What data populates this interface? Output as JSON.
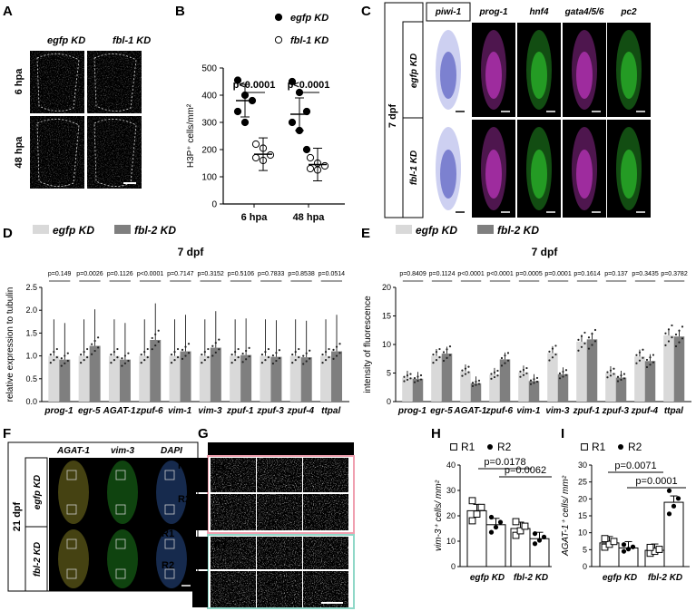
{
  "panel_letters": [
    "A",
    "B",
    "C",
    "D",
    "E",
    "F",
    "G",
    "H",
    "I"
  ],
  "A": {
    "cols": [
      "egfp KD",
      "fbl-1 KD"
    ],
    "rows": [
      "6 hpa",
      "48 hpa"
    ]
  },
  "C": {
    "timepoint": "7 dpf",
    "rows": [
      "egfp KD",
      "fbl-1 KD"
    ],
    "stains": [
      "piwi-1",
      "prog-1",
      "hnf4",
      "gata4/5/6",
      "pc2"
    ],
    "stain_colors": [
      "#3a3fb5",
      "#e040e0",
      "#33dd33",
      "#e040e0",
      "#33dd33"
    ]
  },
  "F": {
    "timepoint": "21 dpf",
    "rows": [
      "egfp KD",
      "fbl-2 KD"
    ],
    "channels": [
      "AGAT-1",
      "vim-3",
      "DAPI"
    ],
    "channel_colors": [
      "#e6dc3a",
      "#33dd33",
      "#4a8cff"
    ],
    "regions": [
      "R1",
      "R2"
    ]
  },
  "G": {
    "channels": [
      "AGAT-1",
      "vim-3",
      "DAPI"
    ],
    "region_labels": [
      "R1",
      "R2"
    ],
    "rows": [
      "egfp KD",
      "fbl-2 KD",
      "egfp KD",
      "fbl-2 KD"
    ]
  },
  "colors": {
    "egfp_bar": "#d9d9d9",
    "fbl_bar": "#7f7f7f",
    "R1_box": "#f0a0b0",
    "R2_box": "#90d8c8"
  },
  "chart_data": [
    {
      "panel": "B",
      "type": "scatter",
      "ylabel": "H3P⁺ cells/mm²",
      "ylim": [
        0,
        500
      ],
      "yticks": [
        0,
        100,
        200,
        300,
        400,
        500
      ],
      "categories": [
        "6 hpa",
        "48 hpa"
      ],
      "series": [
        {
          "name": "egfp KD",
          "mean": [
            380,
            330
          ],
          "values": [
            [
              455,
              400,
              380,
              340,
              300
            ],
            [
              450,
              410,
              340,
              300,
              270,
              200
            ]
          ]
        },
        {
          "name": "fbl-1 KD",
          "mean": [
            183,
            145
          ],
          "values": [
            [
              220,
              205,
              180,
              170,
              160
            ],
            [
              170,
              150,
              140,
              130,
              125
            ]
          ]
        }
      ],
      "annotations": [
        "p<0.0001",
        "p<0.0001"
      ]
    },
    {
      "panel": "D",
      "type": "bar",
      "title": "7 dpf",
      "ylabel": "relative expression to tubulin",
      "ylim": [
        0,
        2.5
      ],
      "yticks": [
        "0.0",
        "0.5",
        "1.0",
        "1.5",
        "2.0",
        "2.5"
      ],
      "categories": [
        "prog-1",
        "egr-5",
        "AGAT-1",
        "zpuf-6",
        "vim-1",
        "vim-3",
        "zpuf-1",
        "zpuf-3",
        "zpuf-4",
        "ttpal"
      ],
      "series": [
        {
          "name": "egfp KD",
          "values": [
            1.0,
            1.0,
            1.0,
            1.0,
            1.0,
            1.0,
            1.0,
            1.0,
            1.0,
            1.0
          ]
        },
        {
          "name": "fbl-2 KD",
          "values": [
            0.92,
            1.22,
            0.92,
            1.35,
            1.1,
            1.18,
            1.02,
            0.98,
            0.97,
            1.1
          ]
        }
      ],
      "p_values": [
        "p=0.149",
        "p=0.0026",
        "p=0.1126",
        "p<0.0001",
        "p=0.7147",
        "p=0.3152",
        "p=0.5106",
        "p=0.7833",
        "p=0.8538",
        "p=0.0514"
      ]
    },
    {
      "panel": "E",
      "type": "bar",
      "title": "7 dpf",
      "ylabel": "intensity of fluorescence",
      "ylim": [
        0,
        20
      ],
      "yticks": [
        0,
        5,
        10,
        15,
        20
      ],
      "categories": [
        "prog-1",
        "egr-5",
        "AGAT-1",
        "zpuf-6",
        "vim-1",
        "vim-3",
        "zpuf-1",
        "zpuf-3",
        "zpuf-4",
        "ttpal"
      ],
      "series": [
        {
          "name": "egfp KD",
          "values": [
            4.2,
            8.0,
            5.3,
            4.7,
            5.1,
            8.5,
            10.5,
            5.0,
            7.9,
            11.6
          ]
        },
        {
          "name": "fbl-2 KD",
          "values": [
            4.0,
            8.4,
            3.2,
            7.4,
            3.6,
            4.8,
            10.9,
            4.2,
            7.1,
            11.4
          ]
        }
      ],
      "p_values": [
        "p=0.8409",
        "p=0.1124",
        "p<0.0001",
        "p<0.0001",
        "p=0.0005",
        "p=0.0001",
        "p=0.1614",
        "p=0.137",
        "p=0.3435",
        "p=0.3782"
      ]
    },
    {
      "panel": "H",
      "type": "bar",
      "ylabel": "vim-3⁺ cells/ mm²",
      "ylim": [
        0,
        40
      ],
      "yticks": [
        0,
        10,
        20,
        30,
        40
      ],
      "categories": [
        "egfp KD",
        "fbl-2 KD"
      ],
      "series": [
        {
          "name": "R1",
          "values": [
            22,
            15
          ]
        },
        {
          "name": "R2",
          "values": [
            16.5,
            11
          ]
        }
      ],
      "annotations": [
        "p=0.0178",
        "p=0.0062"
      ]
    },
    {
      "panel": "I",
      "type": "bar",
      "ylabel": "AGAT-1⁺ cells/ mm²",
      "ylim": [
        0,
        30
      ],
      "yticks": [
        0,
        5,
        10,
        15,
        20,
        25,
        30
      ],
      "categories": [
        "egfp KD",
        "fbl-2 KD"
      ],
      "series": [
        {
          "name": "R1",
          "values": [
            7,
            4.8
          ]
        },
        {
          "name": "R2",
          "values": [
            5.5,
            19
          ]
        }
      ],
      "annotations": [
        "p=0.0071",
        "p=0.0001"
      ]
    }
  ]
}
